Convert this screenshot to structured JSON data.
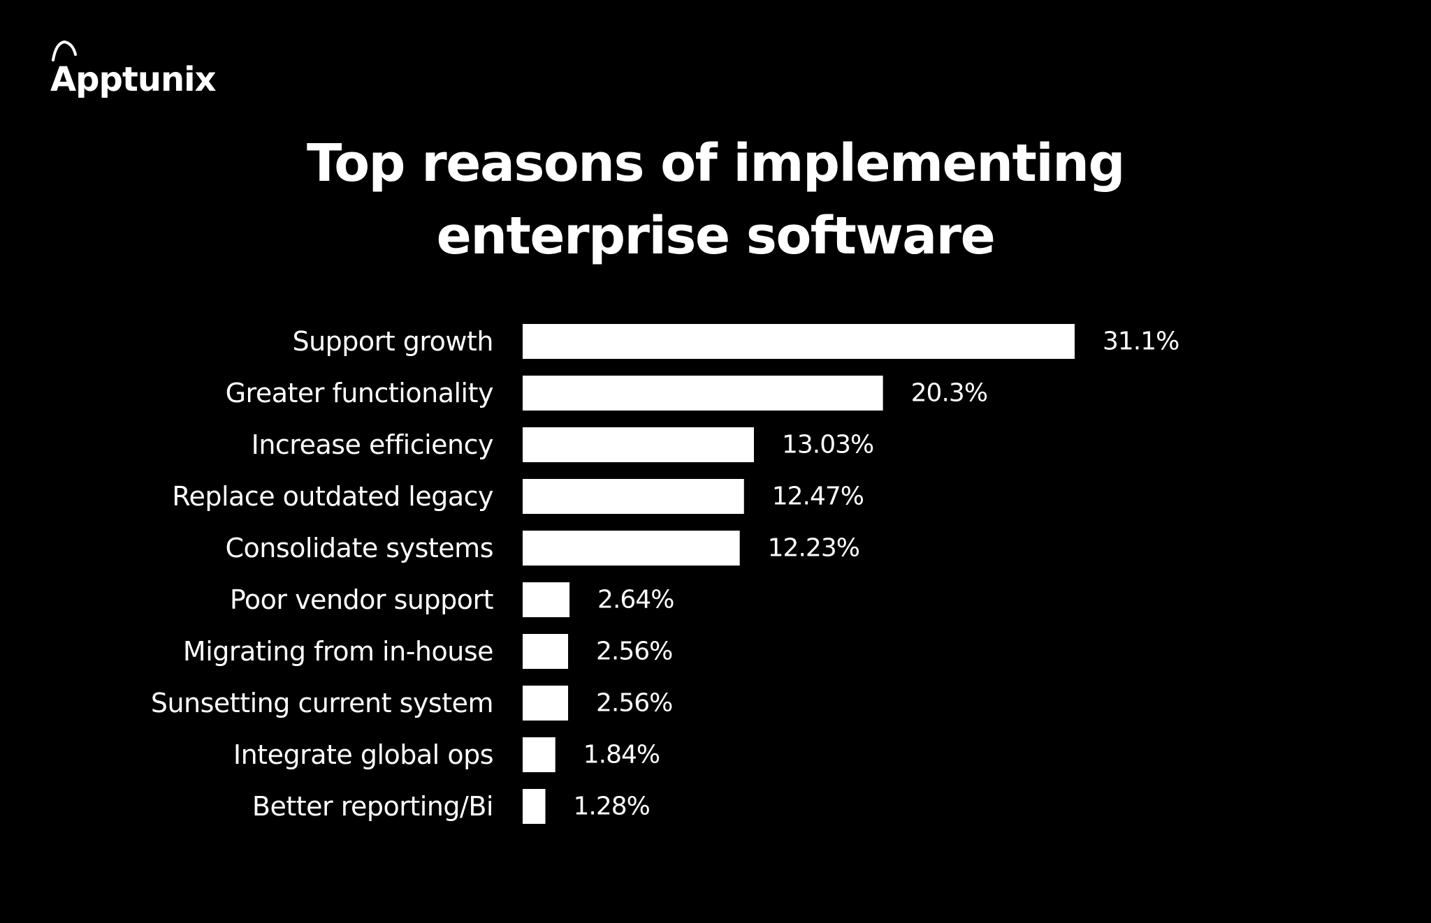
{
  "brand": {
    "name": "Apptunix",
    "logo_icon": "apptunix-logo-icon",
    "text_color": "#ffffff"
  },
  "title_lines": [
    "Top reasons of implementing",
    "enterprise software"
  ],
  "colors": {
    "background": "#000000",
    "bar": "#ffffff",
    "text": "#ffffff"
  },
  "chart_data": {
    "type": "bar",
    "orientation": "horizontal",
    "title": "Top reasons of implementing enterprise software",
    "categories": [
      "Support growth",
      "Greater functionality",
      "Increase efficiency",
      "Replace outdated legacy",
      "Consolidate systems",
      "Poor vendor support",
      "Migrating from in-house",
      "Sunsetting current system",
      "Integrate global ops",
      "Better reporting/Bi"
    ],
    "values": [
      31.1,
      20.3,
      13.03,
      12.47,
      12.23,
      2.64,
      2.56,
      2.56,
      1.84,
      1.28
    ],
    "value_labels": [
      "31.1%",
      "20.3%",
      "13.03%",
      "12.47%",
      "12.23%",
      "2.64%",
      "2.56%",
      "2.56%",
      "1.84%",
      "1.28%"
    ],
    "unit": "%",
    "xlim": [
      0,
      31.1
    ],
    "grid": false,
    "axes_visible": false,
    "legend": "none"
  }
}
